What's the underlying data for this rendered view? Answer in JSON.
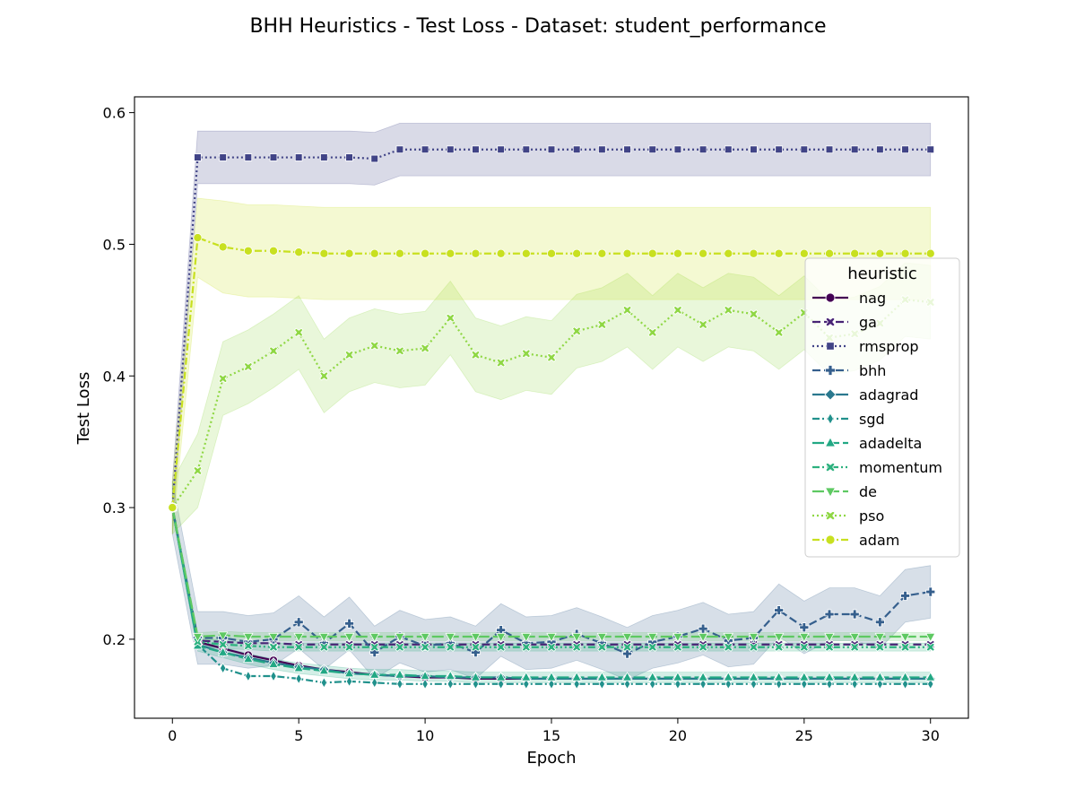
{
  "chart_data": {
    "type": "line",
    "title": "BHH Heuristics - Test Loss - Dataset: student_performance",
    "xlabel": "Epoch",
    "ylabel": "Test Loss",
    "xlim": [
      -1.5,
      31.5
    ],
    "ylim": [
      0.14,
      0.612
    ],
    "xticks": [
      0,
      5,
      10,
      15,
      20,
      25,
      30
    ],
    "yticks": [
      0.2,
      0.3,
      0.4,
      0.5,
      0.6
    ],
    "grid": false,
    "legend": {
      "title": "heuristic",
      "placement": "center-right"
    },
    "x": [
      0,
      1,
      2,
      3,
      4,
      5,
      6,
      7,
      8,
      9,
      10,
      11,
      12,
      13,
      14,
      15,
      16,
      17,
      18,
      19,
      20,
      21,
      22,
      23,
      24,
      25,
      26,
      27,
      28,
      29,
      30
    ],
    "series": [
      {
        "name": "nag",
        "color": "#440154",
        "dash": "solid",
        "marker": "circle",
        "values": [
          0.3,
          0.198,
          0.193,
          0.188,
          0.184,
          0.18,
          0.177,
          0.175,
          0.173,
          0.172,
          0.171,
          0.171,
          0.17,
          0.17,
          0.17,
          0.17,
          0.17,
          0.17,
          0.17,
          0.17,
          0.17,
          0.17,
          0.17,
          0.17,
          0.17,
          0.17,
          0.17,
          0.17,
          0.17,
          0.17,
          0.17
        ]
      },
      {
        "name": "ga",
        "color": "#482475",
        "dash": "dash",
        "marker": "x",
        "values": [
          0.3,
          0.199,
          0.198,
          0.197,
          0.197,
          0.196,
          0.196,
          0.196,
          0.196,
          0.196,
          0.196,
          0.196,
          0.196,
          0.196,
          0.196,
          0.196,
          0.196,
          0.196,
          0.196,
          0.196,
          0.196,
          0.196,
          0.196,
          0.196,
          0.196,
          0.196,
          0.196,
          0.196,
          0.196,
          0.196,
          0.196
        ]
      },
      {
        "name": "rmsprop",
        "color": "#414487",
        "dash": "dot",
        "marker": "square",
        "values": [
          0.3,
          0.566,
          0.566,
          0.566,
          0.566,
          0.566,
          0.566,
          0.566,
          0.565,
          0.572,
          0.572,
          0.572,
          0.572,
          0.572,
          0.572,
          0.572,
          0.572,
          0.572,
          0.572,
          0.572,
          0.572,
          0.572,
          0.572,
          0.572,
          0.572,
          0.572,
          0.572,
          0.572,
          0.572,
          0.572,
          0.572
        ],
        "band": 0.02
      },
      {
        "name": "bhh",
        "color": "#355f8d",
        "dash": "dash",
        "marker": "plus",
        "values": [
          0.3,
          0.201,
          0.201,
          0.198,
          0.2,
          0.213,
          0.197,
          0.212,
          0.19,
          0.202,
          0.195,
          0.197,
          0.19,
          0.207,
          0.197,
          0.198,
          0.204,
          0.197,
          0.189,
          0.198,
          0.202,
          0.208,
          0.199,
          0.201,
          0.222,
          0.209,
          0.219,
          0.219,
          0.213,
          0.233,
          0.236
        ],
        "band": 0.02
      },
      {
        "name": "adagrad",
        "color": "#2a788e",
        "dash": "solid",
        "marker": "diamond",
        "values": [
          0.3,
          0.196,
          0.19,
          0.186,
          0.182,
          0.179,
          0.177,
          0.174,
          0.173,
          0.172,
          0.172,
          0.171,
          0.171,
          0.171,
          0.17,
          0.17,
          0.17,
          0.17,
          0.17,
          0.17,
          0.17,
          0.17,
          0.17,
          0.17,
          0.17,
          0.17,
          0.17,
          0.17,
          0.17,
          0.17,
          0.17
        ]
      },
      {
        "name": "sgd",
        "color": "#21918c",
        "dash": "dashdot",
        "marker": "thin_diamond",
        "values": [
          0.3,
          0.196,
          0.178,
          0.172,
          0.172,
          0.17,
          0.167,
          0.168,
          0.167,
          0.166,
          0.166,
          0.166,
          0.166,
          0.166,
          0.166,
          0.166,
          0.166,
          0.166,
          0.166,
          0.166,
          0.166,
          0.166,
          0.166,
          0.166,
          0.166,
          0.166,
          0.166,
          0.166,
          0.166,
          0.166,
          0.166
        ]
      },
      {
        "name": "adadelta",
        "color": "#22a884",
        "dash": "longdash",
        "marker": "triangle",
        "values": [
          0.3,
          0.195,
          0.19,
          0.185,
          0.181,
          0.178,
          0.176,
          0.174,
          0.173,
          0.173,
          0.172,
          0.172,
          0.171,
          0.171,
          0.171,
          0.171,
          0.171,
          0.171,
          0.171,
          0.171,
          0.171,
          0.171,
          0.171,
          0.171,
          0.171,
          0.171,
          0.171,
          0.171,
          0.171,
          0.171,
          0.171
        ],
        "band": 0.004
      },
      {
        "name": "momentum",
        "color": "#2cb17e",
        "dash": "dashdotdot",
        "marker": "x",
        "values": [
          0.3,
          0.198,
          0.196,
          0.195,
          0.194,
          0.194,
          0.194,
          0.194,
          0.194,
          0.194,
          0.194,
          0.194,
          0.194,
          0.194,
          0.194,
          0.194,
          0.194,
          0.194,
          0.194,
          0.194,
          0.194,
          0.194,
          0.194,
          0.194,
          0.194,
          0.194,
          0.194,
          0.194,
          0.194,
          0.194,
          0.194
        ],
        "band": 0.003
      },
      {
        "name": "de",
        "color": "#5ec962",
        "dash": "longdash",
        "marker": "triangle_down",
        "values": [
          0.3,
          0.202,
          0.203,
          0.202,
          0.202,
          0.202,
          0.202,
          0.202,
          0.202,
          0.202,
          0.202,
          0.202,
          0.202,
          0.202,
          0.202,
          0.202,
          0.202,
          0.202,
          0.202,
          0.202,
          0.202,
          0.202,
          0.202,
          0.202,
          0.202,
          0.202,
          0.202,
          0.202,
          0.202,
          0.202,
          0.202
        ],
        "band": 0.003
      },
      {
        "name": "pso",
        "color": "#8fd744",
        "dash": "dot",
        "marker": "x",
        "values": [
          0.3,
          0.328,
          0.398,
          0.407,
          0.419,
          0.433,
          0.4,
          0.416,
          0.423,
          0.419,
          0.421,
          0.444,
          0.416,
          0.41,
          0.417,
          0.414,
          0.434,
          0.439,
          0.45,
          0.433,
          0.45,
          0.439,
          0.45,
          0.447,
          0.433,
          0.448,
          0.429,
          0.432,
          0.44,
          0.458,
          0.456
        ],
        "band": 0.028
      },
      {
        "name": "adam",
        "color": "#c8e020",
        "dash": "dashdot",
        "marker": "circle",
        "values": [
          0.3,
          0.505,
          0.498,
          0.495,
          0.495,
          0.494,
          0.493,
          0.493,
          0.493,
          0.493,
          0.493,
          0.493,
          0.493,
          0.493,
          0.493,
          0.493,
          0.493,
          0.493,
          0.493,
          0.493,
          0.493,
          0.493,
          0.493,
          0.493,
          0.493,
          0.493,
          0.493,
          0.493,
          0.493,
          0.493,
          0.493
        ],
        "band": 0.035
      }
    ]
  }
}
